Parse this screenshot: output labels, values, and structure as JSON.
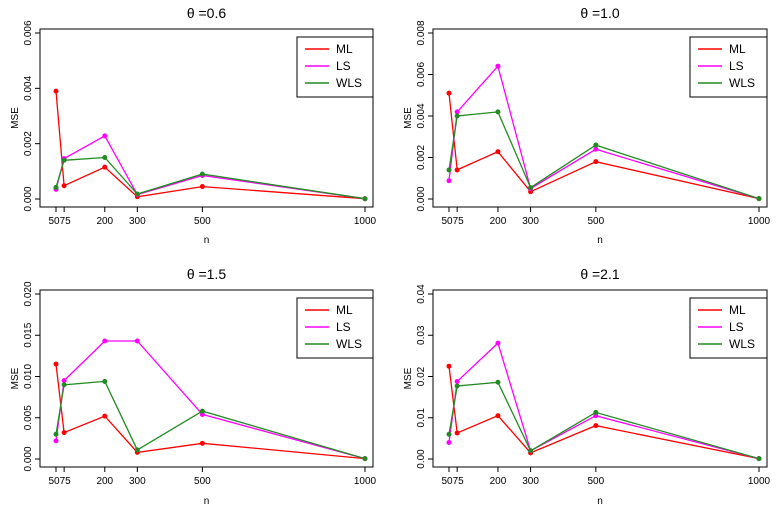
{
  "chart_data": [
    {
      "type": "line",
      "title": "θ =0.6",
      "xlabel": "n",
      "ylabel": "MSE",
      "x": [
        50,
        75,
        200,
        300,
        500,
        1000
      ],
      "xticks": [
        "50",
        "75",
        "200",
        "300",
        "500",
        "1000"
      ],
      "ylim": [
        0,
        0.006
      ],
      "yticks": [
        "0.000",
        "0.002",
        "0.004",
        "0.006"
      ],
      "ytick_values": [
        0,
        0.002,
        0.004,
        0.006
      ],
      "legend_position": "top-right",
      "series": [
        {
          "name": "ML",
          "color": "#ff0000",
          "values": [
            0.0039,
            0.00048,
            0.00115,
            8e-05,
            0.00045,
            1e-05
          ]
        },
        {
          "name": "LS",
          "color": "#ff00ff",
          "values": [
            0.00035,
            0.00146,
            0.00228,
            0.00016,
            0.00085,
            1e-05
          ]
        },
        {
          "name": "WLS",
          "color": "#228b22",
          "values": [
            0.00042,
            0.0014,
            0.0015,
            0.00018,
            0.0009,
            1e-05
          ]
        }
      ]
    },
    {
      "type": "line",
      "title": "θ =1.0",
      "xlabel": "n",
      "ylabel": "MSE",
      "x": [
        50,
        75,
        200,
        300,
        500,
        1000
      ],
      "xticks": [
        "50",
        "75",
        "200",
        "300",
        "500",
        "1000"
      ],
      "ylim": [
        0,
        0.008
      ],
      "yticks": [
        "0.000",
        "0.002",
        "0.004",
        "0.006",
        "0.008"
      ],
      "ytick_values": [
        0,
        0.002,
        0.004,
        0.006,
        0.008
      ],
      "legend_position": "top-right",
      "series": [
        {
          "name": "ML",
          "color": "#ff0000",
          "values": [
            0.0051,
            0.0014,
            0.00228,
            0.00035,
            0.0018,
            2e-05
          ]
        },
        {
          "name": "LS",
          "color": "#ff00ff",
          "values": [
            0.00088,
            0.0042,
            0.0064,
            0.0005,
            0.0024,
            2e-05
          ]
        },
        {
          "name": "WLS",
          "color": "#228b22",
          "values": [
            0.0014,
            0.004,
            0.0042,
            0.00055,
            0.0026,
            2e-05
          ]
        }
      ]
    },
    {
      "type": "line",
      "title": "θ =1.5",
      "xlabel": "n",
      "ylabel": "MSE",
      "x": [
        50,
        75,
        200,
        300,
        500,
        1000
      ],
      "xticks": [
        "50",
        "75",
        "200",
        "300",
        "500",
        "1000"
      ],
      "ylim": [
        0,
        0.02
      ],
      "yticks": [
        "0.000",
        "0.005",
        "0.010",
        "0.015",
        "0.020"
      ],
      "ytick_values": [
        0,
        0.005,
        0.01,
        0.015,
        0.02
      ],
      "legend_position": "top-right",
      "series": [
        {
          "name": "ML",
          "color": "#ff0000",
          "values": [
            0.0115,
            0.0032,
            0.0052,
            0.0008,
            0.0019,
            5e-05
          ]
        },
        {
          "name": "LS",
          "color": "#ff00ff",
          "values": [
            0.0022,
            0.0095,
            0.0143,
            0.0143,
            0.0054,
            5e-05
          ]
        },
        {
          "name": "WLS",
          "color": "#228b22",
          "values": [
            0.003,
            0.009,
            0.0094,
            0.0011,
            0.0058,
            5e-05
          ]
        }
      ]
    },
    {
      "type": "line",
      "title": "θ =2.1",
      "xlabel": "n",
      "ylabel": "MSE",
      "x": [
        50,
        75,
        200,
        300,
        500,
        1000
      ],
      "xticks": [
        "50",
        "75",
        "200",
        "300",
        "500",
        "1000"
      ],
      "ylim": [
        0,
        0.04
      ],
      "yticks": [
        "0.00",
        "0.01",
        "0.02",
        "0.03",
        "0.04"
      ],
      "ytick_values": [
        0,
        0.01,
        0.02,
        0.03,
        0.04
      ],
      "legend_position": "top-right",
      "series": [
        {
          "name": "ML",
          "color": "#ff0000",
          "values": [
            0.0225,
            0.0063,
            0.0105,
            0.0015,
            0.0081,
            0.0001
          ]
        },
        {
          "name": "LS",
          "color": "#ff00ff",
          "values": [
            0.004,
            0.0188,
            0.0281,
            0.002,
            0.0105,
            0.0001
          ]
        },
        {
          "name": "WLS",
          "color": "#228b22",
          "values": [
            0.006,
            0.0177,
            0.0186,
            0.002,
            0.0113,
            0.0001
          ]
        }
      ]
    }
  ]
}
